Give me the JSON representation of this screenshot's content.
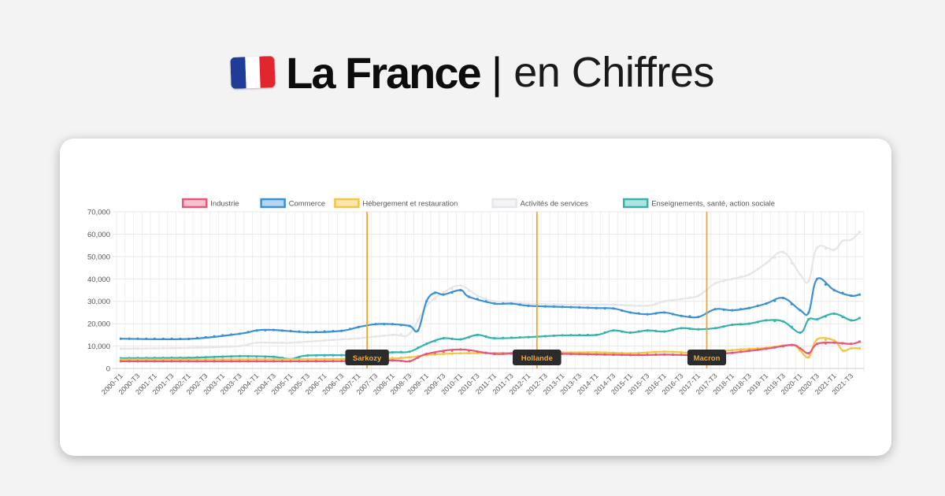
{
  "header": {
    "title_bold": "La France",
    "separator": "|",
    "title_light": "en Chiffres",
    "flag_colors": [
      "#1f3c96",
      "#ffffff",
      "#e1262d"
    ]
  },
  "chart_data": {
    "type": "line",
    "title": "",
    "xlabel": "",
    "ylabel": "",
    "ylim": [
      0,
      70000
    ],
    "yticks": [
      0,
      10000,
      20000,
      30000,
      40000,
      50000,
      60000,
      70000
    ],
    "ytick_labels": [
      "0",
      "10,000",
      "20,000",
      "30,000",
      "40,000",
      "50,000",
      "60,000",
      "70,000"
    ],
    "grid": true,
    "legend_position": "top",
    "x_range": [
      "2000-T1",
      "2021-T4"
    ],
    "x_tick_labels": [
      "2000-T1",
      "2000-T3",
      "2001-T1",
      "2001-T3",
      "2002-T1",
      "2002-T3",
      "2003-T1",
      "2003-T3",
      "2004-T1",
      "2004-T3",
      "2005-T1",
      "2005-T3",
      "2006-T1",
      "2006-T3",
      "2007-T1",
      "2007-T3",
      "2008-T1",
      "2008-T3",
      "2009-T1",
      "2009-T3",
      "2010-T1",
      "2010-T3",
      "2011-T1",
      "2011-T3",
      "2012-T1",
      "2012-T3",
      "2013-T1",
      "2013-T3",
      "2014-T1",
      "2014-T3",
      "2015-T1",
      "2015-T3",
      "2016-T1",
      "2016-T3",
      "2017-T1",
      "2017-T3",
      "2018-T1",
      "2018-T3",
      "2019-T1",
      "2019-T3",
      "2020-T1",
      "2020-T3",
      "2021-T1",
      "2021-T3"
    ],
    "series": [
      {
        "name": "Industrie",
        "color": "#e8577a",
        "fill": "#f7c2cf",
        "points": [
          [
            "2000-T1",
            3200
          ],
          [
            "2006-T1",
            3200
          ],
          [
            "2008-T1",
            3600
          ],
          [
            "2008-T3",
            3200
          ],
          [
            "2009-T1",
            6500
          ],
          [
            "2010-T1",
            8500
          ],
          [
            "2011-T1",
            6500
          ],
          [
            "2012-T1",
            6800
          ],
          [
            "2015-T1",
            6000
          ],
          [
            "2016-T1",
            6200
          ],
          [
            "2017-T1",
            6000
          ],
          [
            "2018-T1",
            7000
          ],
          [
            "2019-T1",
            8800
          ],
          [
            "2019-T4",
            10500
          ],
          [
            "2020-T1",
            9000
          ],
          [
            "2020-T2",
            6800
          ],
          [
            "2020-T3",
            11000
          ],
          [
            "2021-T1",
            11500
          ],
          [
            "2021-T3",
            11000
          ],
          [
            "2021-T4",
            12000
          ]
        ]
      },
      {
        "name": "Commerce",
        "color": "#3b91d6",
        "fill": "#b6d6f1",
        "points": [
          [
            "2000-T1",
            13300
          ],
          [
            "2002-T1",
            13200
          ],
          [
            "2003-T3",
            15500
          ],
          [
            "2004-T1",
            17000
          ],
          [
            "2004-T3",
            17200
          ],
          [
            "2005-T3",
            16200
          ],
          [
            "2006-T3",
            16800
          ],
          [
            "2007-T1",
            18500
          ],
          [
            "2007-T3",
            19800
          ],
          [
            "2008-T1",
            19800
          ],
          [
            "2008-T3",
            19000
          ],
          [
            "2008-T4",
            17000
          ],
          [
            "2009-T1",
            30000
          ],
          [
            "2009-T2",
            33800
          ],
          [
            "2009-T3",
            33000
          ],
          [
            "2010-T1",
            35000
          ],
          [
            "2010-T2",
            32000
          ],
          [
            "2011-T1",
            29000
          ],
          [
            "2011-T3",
            29000
          ],
          [
            "2012-T1",
            28000
          ],
          [
            "2013-T1",
            27500
          ],
          [
            "2014-T1",
            27000
          ],
          [
            "2014-T3",
            26800
          ],
          [
            "2015-T1",
            25000
          ],
          [
            "2015-T3",
            24200
          ],
          [
            "2016-T1",
            25000
          ],
          [
            "2016-T3",
            23500
          ],
          [
            "2017-T1",
            23000
          ],
          [
            "2017-T3",
            26500
          ],
          [
            "2018-T1",
            26000
          ],
          [
            "2018-T3",
            27000
          ],
          [
            "2019-T1",
            29000
          ],
          [
            "2019-T3",
            31500
          ],
          [
            "2020-T1",
            26000
          ],
          [
            "2020-T2",
            25000
          ],
          [
            "2020-T3",
            40000
          ],
          [
            "2021-T1",
            35000
          ],
          [
            "2021-T3",
            32500
          ],
          [
            "2021-T4",
            33000
          ]
        ]
      },
      {
        "name": "Hébergement et restauration",
        "color": "#f4c542",
        "fill": "#fbe6ae",
        "points": [
          [
            "2000-T1",
            4000
          ],
          [
            "2007-T1",
            4200
          ],
          [
            "2008-T3",
            5000
          ],
          [
            "2009-T1",
            6000
          ],
          [
            "2010-T1",
            6800
          ],
          [
            "2012-T1",
            7000
          ],
          [
            "2014-T1",
            7200
          ],
          [
            "2015-T1",
            6800
          ],
          [
            "2016-T1",
            7500
          ],
          [
            "2017-T1",
            7000
          ],
          [
            "2018-T1",
            8200
          ],
          [
            "2019-T1",
            9200
          ],
          [
            "2019-T4",
            10500
          ],
          [
            "2020-T1",
            8000
          ],
          [
            "2020-T2",
            5000
          ],
          [
            "2020-T3",
            13000
          ],
          [
            "2021-T1",
            12500
          ],
          [
            "2021-T2",
            8000
          ],
          [
            "2021-T3",
            9000
          ],
          [
            "2021-T4",
            9000
          ]
        ]
      },
      {
        "name": "Activités de services",
        "color": "#e6e6ea",
        "fill": "#f4f4f6",
        "points": [
          [
            "2000-T1",
            8800
          ],
          [
            "2002-T1",
            9200
          ],
          [
            "2003-T3",
            10000
          ],
          [
            "2004-T1",
            11500
          ],
          [
            "2005-T1",
            11500
          ],
          [
            "2006-T1",
            12500
          ],
          [
            "2007-T1",
            13500
          ],
          [
            "2008-T1",
            15000
          ],
          [
            "2008-T3",
            15500
          ],
          [
            "2009-T1",
            28000
          ],
          [
            "2009-T3",
            34000
          ],
          [
            "2010-T1",
            37000
          ],
          [
            "2010-T3",
            32500
          ],
          [
            "2011-T1",
            30000
          ],
          [
            "2012-T1",
            29000
          ],
          [
            "2013-T1",
            28500
          ],
          [
            "2014-T1",
            28500
          ],
          [
            "2014-T3",
            28500
          ],
          [
            "2015-T3",
            28000
          ],
          [
            "2016-T1",
            30000
          ],
          [
            "2016-T3",
            31000
          ],
          [
            "2017-T1",
            32500
          ],
          [
            "2017-T3",
            38000
          ],
          [
            "2018-T1",
            40000
          ],
          [
            "2018-T3",
            42000
          ],
          [
            "2019-T1",
            47000
          ],
          [
            "2019-T3",
            52000
          ],
          [
            "2020-T1",
            42000
          ],
          [
            "2020-T2",
            39000
          ],
          [
            "2020-T3",
            54000
          ],
          [
            "2021-T1",
            53000
          ],
          [
            "2021-T2",
            57000
          ],
          [
            "2021-T3",
            57500
          ],
          [
            "2021-T4",
            61000
          ]
        ]
      },
      {
        "name": "Enseignements, santé, action sociale",
        "color": "#36b3ad",
        "fill": "#b0e2df",
        "points": [
          [
            "2000-T1",
            4600
          ],
          [
            "2002-T1",
            4800
          ],
          [
            "2003-T3",
            5500
          ],
          [
            "2004-T3",
            5200
          ],
          [
            "2005-T1",
            4200
          ],
          [
            "2005-T3",
            5800
          ],
          [
            "2007-T1",
            6000
          ],
          [
            "2008-T1",
            7200
          ],
          [
            "2008-T3",
            7500
          ],
          [
            "2009-T1",
            11000
          ],
          [
            "2009-T3",
            13500
          ],
          [
            "2010-T1",
            13000
          ],
          [
            "2010-T3",
            15000
          ],
          [
            "2011-T1",
            13500
          ],
          [
            "2012-T1",
            14000
          ],
          [
            "2013-T1",
            14800
          ],
          [
            "2014-T1",
            15000
          ],
          [
            "2014-T3",
            17000
          ],
          [
            "2015-T1",
            16000
          ],
          [
            "2015-T3",
            17000
          ],
          [
            "2016-T1",
            16500
          ],
          [
            "2016-T3",
            18000
          ],
          [
            "2017-T1",
            17500
          ],
          [
            "2017-T3",
            18000
          ],
          [
            "2018-T1",
            19500
          ],
          [
            "2018-T3",
            20000
          ],
          [
            "2019-T1",
            21500
          ],
          [
            "2019-T3",
            21000
          ],
          [
            "2020-T1",
            16000
          ],
          [
            "2020-T2",
            22000
          ],
          [
            "2020-T3",
            22000
          ],
          [
            "2021-T1",
            24500
          ],
          [
            "2021-T3",
            21500
          ],
          [
            "2021-T4",
            22500
          ]
        ]
      }
    ],
    "annotations": [
      {
        "label": "Sarkozy",
        "x": "2007-T2",
        "color": "#f5a623"
      },
      {
        "label": "Hollande",
        "x": "2012-T2",
        "color": "#f5a623"
      },
      {
        "label": "Macron",
        "x": "2017-T2",
        "color": "#f5a623"
      }
    ]
  }
}
